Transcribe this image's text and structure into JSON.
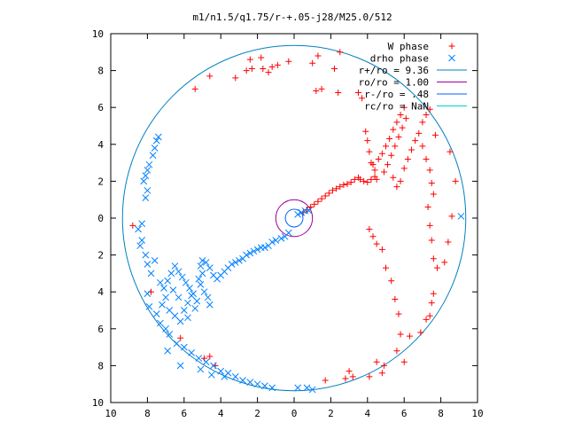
{
  "chart_data": {
    "type": "scatter",
    "title": "m1/n1.5/q1.75/r-+.05-j28/M25.0/512",
    "xlim": [
      -10,
      10
    ],
    "ylim": [
      -10,
      10
    ],
    "x_ticks": [
      -10,
      -8,
      -6,
      -4,
      -2,
      0,
      2,
      4,
      6,
      8,
      10
    ],
    "y_ticks": [
      -10,
      -8,
      -6,
      -4,
      -2,
      0,
      2,
      4,
      6,
      8,
      10
    ],
    "x_tick_labels": [
      "10",
      "8",
      "6",
      "4",
      "2",
      "0",
      "2",
      "4",
      "6",
      "8",
      "10"
    ],
    "y_tick_labels": [
      "10",
      "8",
      "6",
      "4",
      "2",
      "0",
      "2",
      "4",
      "6",
      "8",
      "10"
    ],
    "grid": false,
    "legend_position": "top-right",
    "colors": {
      "w_phase": "#ff0000",
      "drho_phase": "#0080ff",
      "r_plus": "#0080c0",
      "ro": "#a000a0",
      "r_minus": "#0060ff",
      "rc": "#00d0d0"
    },
    "legend": [
      {
        "label": "W phase",
        "symbol": "plus",
        "color": "#ff0000"
      },
      {
        "label": "drho phase",
        "symbol": "cross",
        "color": "#0080ff"
      },
      {
        "label": "r+/ro = 9.36",
        "symbol": "line",
        "color": "#0080c0"
      },
      {
        "label": "ro/ro = 1.00",
        "symbol": "line",
        "color": "#a000a0"
      },
      {
        "label": "r-/ro = .48",
        "symbol": "line",
        "color": "#0060ff"
      },
      {
        "label": "rc/ro = NaN",
        "symbol": "line",
        "color": "#00d0d0"
      }
    ],
    "circles": [
      {
        "name": "r+/ro",
        "r": 9.36,
        "color": "#0080c0"
      },
      {
        "name": "ro/ro",
        "r": 1.0,
        "color": "#a000a0"
      },
      {
        "name": "r-/ro",
        "r": 0.48,
        "color": "#0060ff"
      }
    ],
    "series": [
      {
        "name": "W phase",
        "marker": "plus",
        "color": "#ff0000",
        "points": [
          [
            0.5,
            0.3
          ],
          [
            0.7,
            0.45
          ],
          [
            0.9,
            0.6
          ],
          [
            1.1,
            0.75
          ],
          [
            1.3,
            0.9
          ],
          [
            1.5,
            1.05
          ],
          [
            1.7,
            1.2
          ],
          [
            1.9,
            1.35
          ],
          [
            2.1,
            1.5
          ],
          [
            2.3,
            1.6
          ],
          [
            2.5,
            1.7
          ],
          [
            2.7,
            1.8
          ],
          [
            2.9,
            1.85
          ],
          [
            3.1,
            1.95
          ],
          [
            3.3,
            2.1
          ],
          [
            3.5,
            2.2
          ],
          [
            3.6,
            2.1
          ],
          [
            3.8,
            2.0
          ],
          [
            4.0,
            1.95
          ],
          [
            4.2,
            2.1
          ],
          [
            4.4,
            2.25
          ],
          [
            4.5,
            2.1
          ],
          [
            4.4,
            2.6
          ],
          [
            4.2,
            3.0
          ],
          [
            4.1,
            3.6
          ],
          [
            4.0,
            4.2
          ],
          [
            3.9,
            4.7
          ],
          [
            4.3,
            2.9
          ],
          [
            4.6,
            3.2
          ],
          [
            4.8,
            3.5
          ],
          [
            5.0,
            3.9
          ],
          [
            5.2,
            4.3
          ],
          [
            5.4,
            4.8
          ],
          [
            5.6,
            5.2
          ],
          [
            5.8,
            5.6
          ],
          [
            6.0,
            6.0
          ],
          [
            4.9,
            2.5
          ],
          [
            5.1,
            2.9
          ],
          [
            5.3,
            3.4
          ],
          [
            5.5,
            3.9
          ],
          [
            5.7,
            4.4
          ],
          [
            5.9,
            4.9
          ],
          [
            6.1,
            5.4
          ],
          [
            5.4,
            2.2
          ],
          [
            5.6,
            1.7
          ],
          [
            5.8,
            2.0
          ],
          [
            6.0,
            2.7
          ],
          [
            6.2,
            3.2
          ],
          [
            6.4,
            3.7
          ],
          [
            6.6,
            4.2
          ],
          [
            6.8,
            4.6
          ],
          [
            7.0,
            5.2
          ],
          [
            7.2,
            5.6
          ],
          [
            7.4,
            5.9
          ],
          [
            7.0,
            3.9
          ],
          [
            7.2,
            3.2
          ],
          [
            7.4,
            2.6
          ],
          [
            7.5,
            1.9
          ],
          [
            7.6,
            1.3
          ],
          [
            7.3,
            0.6
          ],
          [
            7.4,
            -0.4
          ],
          [
            7.5,
            -1.2
          ],
          [
            7.6,
            -2.2
          ],
          [
            7.8,
            -2.7
          ],
          [
            8.2,
            -2.4
          ],
          [
            8.4,
            -1.3
          ],
          [
            8.6,
            0.1
          ],
          [
            8.8,
            2.0
          ],
          [
            8.5,
            3.6
          ],
          [
            7.7,
            4.5
          ],
          [
            7.6,
            -4.1
          ],
          [
            7.5,
            -4.6
          ],
          [
            7.4,
            -5.3
          ],
          [
            7.2,
            -5.5
          ],
          [
            6.9,
            -6.2
          ],
          [
            6.3,
            -6.4
          ],
          [
            5.8,
            -6.3
          ],
          [
            5.7,
            -5.2
          ],
          [
            5.5,
            -4.4
          ],
          [
            5.3,
            -3.4
          ],
          [
            5.0,
            -2.7
          ],
          [
            4.8,
            -1.7
          ],
          [
            4.5,
            -1.4
          ],
          [
            4.3,
            -1.0
          ],
          [
            4.1,
            -0.6
          ],
          [
            5.6,
            -7.2
          ],
          [
            6.0,
            -7.8
          ],
          [
            4.9,
            -8.0
          ],
          [
            4.5,
            -7.8
          ],
          [
            4.8,
            -8.4
          ],
          [
            4.1,
            -8.6
          ],
          [
            3.0,
            -8.3
          ],
          [
            3.2,
            -8.6
          ],
          [
            2.8,
            -8.7
          ],
          [
            1.7,
            -8.8
          ],
          [
            -1.4,
            7.9
          ],
          [
            -2.6,
            8.0
          ],
          [
            -2.3,
            8.1
          ],
          [
            -1.7,
            8.1
          ],
          [
            -1.2,
            8.2
          ],
          [
            -0.9,
            8.3
          ],
          [
            -0.3,
            8.5
          ],
          [
            -2.4,
            8.6
          ],
          [
            -1.8,
            8.7
          ],
          [
            1.0,
            8.4
          ],
          [
            2.2,
            8.1
          ],
          [
            2.4,
            6.8
          ],
          [
            1.2,
            6.9
          ],
          [
            1.5,
            7.0
          ],
          [
            3.5,
            6.8
          ],
          [
            3.7,
            6.5
          ],
          [
            1.3,
            8.8
          ],
          [
            2.5,
            9.0
          ],
          [
            -5.4,
            7.0
          ],
          [
            -4.6,
            7.7
          ],
          [
            -3.2,
            7.6
          ],
          [
            -8.8,
            -0.4
          ],
          [
            -7.8,
            -4.0
          ],
          [
            -6.2,
            -6.5
          ],
          [
            -4.6,
            -7.5
          ],
          [
            -4.9,
            -7.6
          ],
          [
            -4.3,
            -8.0
          ]
        ]
      },
      {
        "name": "drho phase",
        "marker": "cross",
        "color": "#0080ff",
        "points": [
          [
            0.2,
            0.2
          ],
          [
            0.4,
            0.3
          ],
          [
            0.6,
            0.4
          ],
          [
            0.8,
            0.4
          ],
          [
            -0.3,
            -0.8
          ],
          [
            -0.5,
            -1.0
          ],
          [
            -0.7,
            -1.1
          ],
          [
            -1.0,
            -1.2
          ],
          [
            -1.2,
            -1.3
          ],
          [
            -1.4,
            -1.5
          ],
          [
            -1.6,
            -1.6
          ],
          [
            -1.8,
            -1.6
          ],
          [
            -2.0,
            -1.7
          ],
          [
            -2.2,
            -1.8
          ],
          [
            -2.4,
            -1.9
          ],
          [
            -2.6,
            -2.0
          ],
          [
            -2.8,
            -2.2
          ],
          [
            -3.0,
            -2.3
          ],
          [
            -3.2,
            -2.4
          ],
          [
            -3.4,
            -2.5
          ],
          [
            -3.6,
            -2.7
          ],
          [
            -3.8,
            -2.9
          ],
          [
            -4.0,
            -3.1
          ],
          [
            -4.2,
            -3.3
          ],
          [
            -4.4,
            -3.1
          ],
          [
            -4.6,
            -2.7
          ],
          [
            -4.8,
            -2.4
          ],
          [
            -5.0,
            -2.3
          ],
          [
            -5.1,
            -2.6
          ],
          [
            -5.0,
            -3.0
          ],
          [
            -5.2,
            -3.3
          ],
          [
            -5.1,
            -3.6
          ],
          [
            -4.9,
            -4.0
          ],
          [
            -4.7,
            -4.3
          ],
          [
            -4.6,
            -4.7
          ],
          [
            -5.3,
            -4.5
          ],
          [
            -5.5,
            -4.1
          ],
          [
            -5.7,
            -3.8
          ],
          [
            -5.9,
            -3.5
          ],
          [
            -6.1,
            -3.2
          ],
          [
            -6.3,
            -2.9
          ],
          [
            -6.5,
            -2.6
          ],
          [
            -6.7,
            -3.0
          ],
          [
            -6.9,
            -3.4
          ],
          [
            -7.1,
            -3.8
          ],
          [
            -7.0,
            -4.3
          ],
          [
            -7.2,
            -4.7
          ],
          [
            -6.8,
            -5.0
          ],
          [
            -6.5,
            -5.3
          ],
          [
            -6.2,
            -5.6
          ],
          [
            -6.0,
            -5.0
          ],
          [
            -5.8,
            -4.6
          ],
          [
            -5.6,
            -4.2
          ],
          [
            -5.4,
            -4.9
          ],
          [
            -5.8,
            -5.4
          ],
          [
            -6.3,
            -4.3
          ],
          [
            -6.6,
            -3.9
          ],
          [
            -7.3,
            -3.5
          ],
          [
            -7.6,
            -2.3
          ],
          [
            -7.8,
            -3.0
          ],
          [
            -8.0,
            -4.1
          ],
          [
            -8.1,
            -2.0
          ],
          [
            -8.3,
            -1.2
          ],
          [
            -8.5,
            -0.6
          ],
          [
            -8.3,
            -0.3
          ],
          [
            -8.1,
            1.1
          ],
          [
            -8.0,
            1.5
          ],
          [
            -8.2,
            2.0
          ],
          [
            -8.1,
            2.3
          ],
          [
            -8.0,
            2.6
          ],
          [
            -7.9,
            2.9
          ],
          [
            -7.7,
            3.4
          ],
          [
            -7.6,
            3.8
          ],
          [
            -7.5,
            4.2
          ],
          [
            -7.4,
            4.4
          ],
          [
            -8.4,
            -1.5
          ],
          [
            -8.0,
            -2.5
          ],
          [
            -7.3,
            -5.7
          ],
          [
            -7.0,
            -6.0
          ],
          [
            -6.8,
            -6.3
          ],
          [
            -6.4,
            -6.8
          ],
          [
            -6.0,
            -7.0
          ],
          [
            -5.6,
            -7.3
          ],
          [
            -5.2,
            -7.6
          ],
          [
            -4.8,
            -7.8
          ],
          [
            -4.4,
            -8.0
          ],
          [
            -4.0,
            -8.3
          ],
          [
            -3.6,
            -8.4
          ],
          [
            -3.2,
            -8.6
          ],
          [
            -2.8,
            -8.8
          ],
          [
            -2.4,
            -8.9
          ],
          [
            -2.0,
            -9.0
          ],
          [
            -1.6,
            -9.1
          ],
          [
            -1.2,
            -9.2
          ],
          [
            0.2,
            -9.2
          ],
          [
            0.7,
            -9.2
          ],
          [
            1.0,
            -9.3
          ],
          [
            -6.9,
            -7.2
          ],
          [
            -6.2,
            -8.0
          ],
          [
            -5.1,
            -8.2
          ],
          [
            -4.5,
            -8.5
          ],
          [
            -3.8,
            -8.6
          ],
          [
            -7.5,
            -5.2
          ],
          [
            -7.9,
            -4.8
          ],
          [
            9.1,
            0.1
          ]
        ]
      }
    ]
  }
}
